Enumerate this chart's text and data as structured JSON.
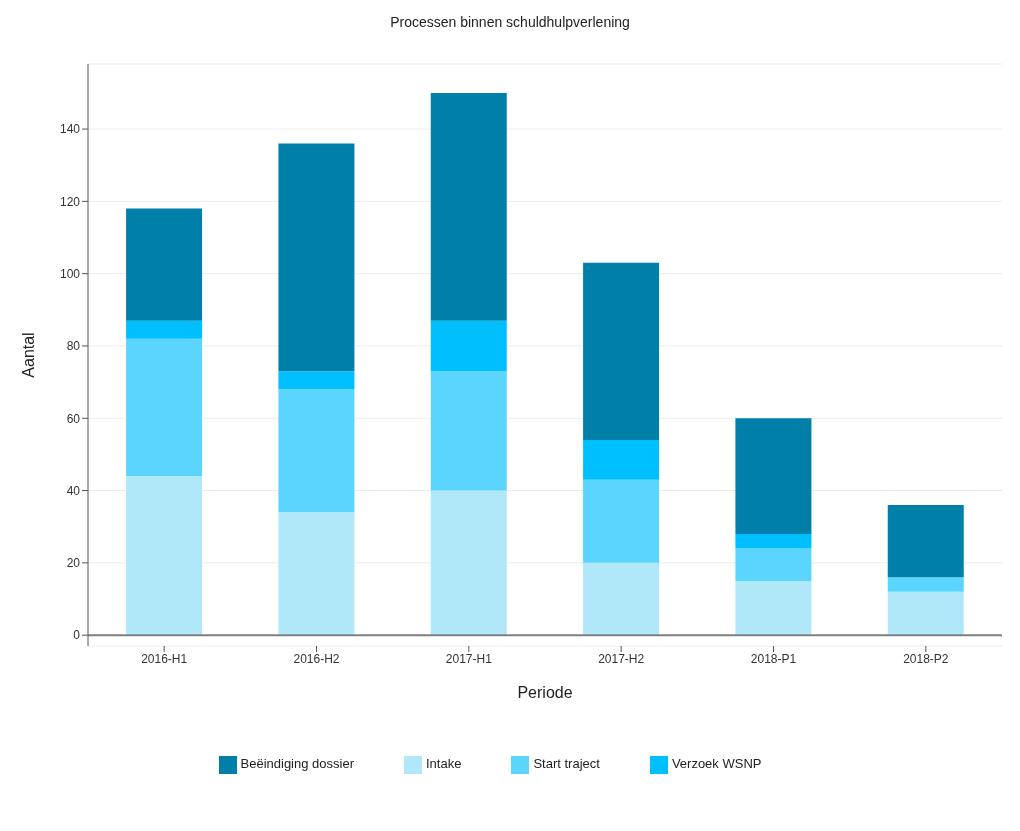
{
  "chart_data": {
    "type": "bar",
    "title": "Processen binnen schuldhulpverlening",
    "xlabel": "Periode",
    "ylabel": "Aantal",
    "categories": [
      "2016-H1",
      "2016-H2",
      "2017-H1",
      "2017-H2",
      "2018-P1",
      "2018-P2"
    ],
    "stacked": true,
    "series": [
      {
        "name": "Intake",
        "color": "#b0e8fa",
        "values": [
          44,
          34,
          40,
          20,
          15,
          12
        ]
      },
      {
        "name": "Start traject",
        "color": "#5bd5fe",
        "values": [
          38,
          34,
          33,
          23,
          9,
          4
        ]
      },
      {
        "name": "Verzoek WSNP",
        "color": "#00bfff",
        "values": [
          5,
          5,
          14,
          11,
          4,
          0
        ]
      },
      {
        "name": "Beëindiging dossier",
        "color": "#007fa8",
        "values": [
          31,
          63,
          63,
          49,
          32,
          20
        ]
      }
    ],
    "ylim": [
      -3,
      158
    ],
    "yticks": [
      0,
      20,
      40,
      60,
      80,
      100,
      120,
      140
    ],
    "ref_lines": [
      {
        "axis": "y",
        "value": 0,
        "color": "#808080"
      }
    ],
    "grid": "y",
    "legend": "bottom"
  }
}
